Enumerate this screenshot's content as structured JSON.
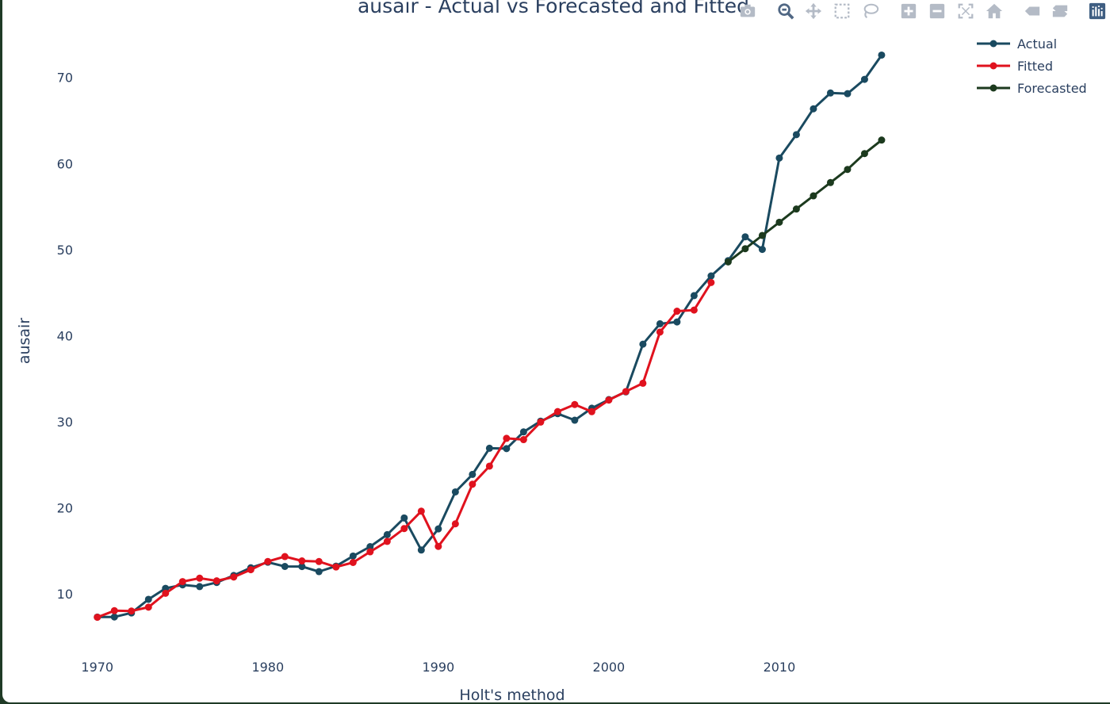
{
  "chart_data": {
    "type": "line",
    "title": "ausair - Actual vs Forecasted and Fitted",
    "xlabel": "Holt's method",
    "ylabel": "ausair",
    "xlim": [
      1967.5,
      2028
    ],
    "ylim": [
      3.3,
      75.5
    ],
    "x_ticks": [
      1970,
      1980,
      1990,
      2000,
      2010
    ],
    "y_ticks": [
      10,
      20,
      30,
      40,
      50,
      60,
      70
    ],
    "grid": false,
    "legend_position": "top-right",
    "series": [
      {
        "name": "Actual",
        "color": "#1a4a60",
        "x": [
          1970,
          1971,
          1972,
          1973,
          1974,
          1975,
          1976,
          1977,
          1978,
          1979,
          1980,
          1981,
          1982,
          1983,
          1984,
          1985,
          1986,
          1987,
          1988,
          1989,
          1990,
          1991,
          1992,
          1993,
          1994,
          1995,
          1996,
          1997,
          1998,
          1999,
          2000,
          2001,
          2002,
          2003,
          2004,
          2005,
          2006,
          2007,
          2008,
          2009,
          2010,
          2011,
          2012,
          2013,
          2014,
          2015,
          2016
        ],
        "values": [
          7.32,
          7.33,
          7.8,
          9.38,
          10.66,
          11.06,
          10.86,
          11.34,
          12.15,
          13.05,
          13.69,
          13.2,
          13.19,
          12.6,
          13.24,
          14.41,
          15.5,
          16.89,
          18.83,
          15.11,
          17.56,
          21.86,
          23.89,
          26.93,
          26.89,
          28.83,
          30.08,
          30.95,
          30.19,
          31.58,
          32.58,
          33.48,
          39.02,
          41.39,
          41.6,
          44.66,
          46.95,
          48.73,
          51.49,
          50.03,
          60.64,
          63.36,
          66.36,
          68.2,
          68.12,
          69.78,
          72.6
        ]
      },
      {
        "name": "Fitted",
        "color": "#e0121e",
        "x": [
          1970,
          1971,
          1972,
          1973,
          1974,
          1975,
          1976,
          1977,
          1978,
          1979,
          1980,
          1981,
          1982,
          1983,
          1984,
          1985,
          1986,
          1987,
          1988,
          1989,
          1990,
          1991,
          1992,
          1993,
          1994,
          1995,
          1996,
          1997,
          1998,
          1999,
          2000,
          2001,
          2002,
          2003,
          2004,
          2005,
          2006
        ],
        "values": [
          7.3,
          8.06,
          8.02,
          8.47,
          10.08,
          11.44,
          11.84,
          11.53,
          11.97,
          12.82,
          13.78,
          14.35,
          13.84,
          13.77,
          13.14,
          13.66,
          14.9,
          16.11,
          17.6,
          19.62,
          15.53,
          18.15,
          22.75,
          24.85,
          28.08,
          27.93,
          29.97,
          31.19,
          32.01,
          31.18,
          32.53,
          33.52,
          34.48,
          40.43,
          42.85,
          42.98,
          46.18
        ]
      },
      {
        "name": "Forecasted",
        "color": "#1c3a1e",
        "x": [
          2007,
          2008,
          2009,
          2010,
          2011,
          2012,
          2013,
          2014,
          2015,
          2016
        ],
        "values": [
          48.58,
          50.11,
          51.65,
          53.18,
          54.72,
          56.25,
          57.79,
          59.32,
          61.16,
          62.73
        ]
      }
    ]
  },
  "modebar": {
    "icon_color": "#b4bbc6",
    "active_color": "#506784",
    "buttons": [
      "camera-icon",
      "zoom-icon",
      "pan-icon",
      "box-select-icon",
      "lasso-select-icon",
      "zoom-in-icon",
      "zoom-out-icon",
      "autoscale-icon",
      "reset-axes-icon",
      "spike-lines-icon",
      "compare-hover-icon",
      "plotly-logo-icon"
    ]
  }
}
